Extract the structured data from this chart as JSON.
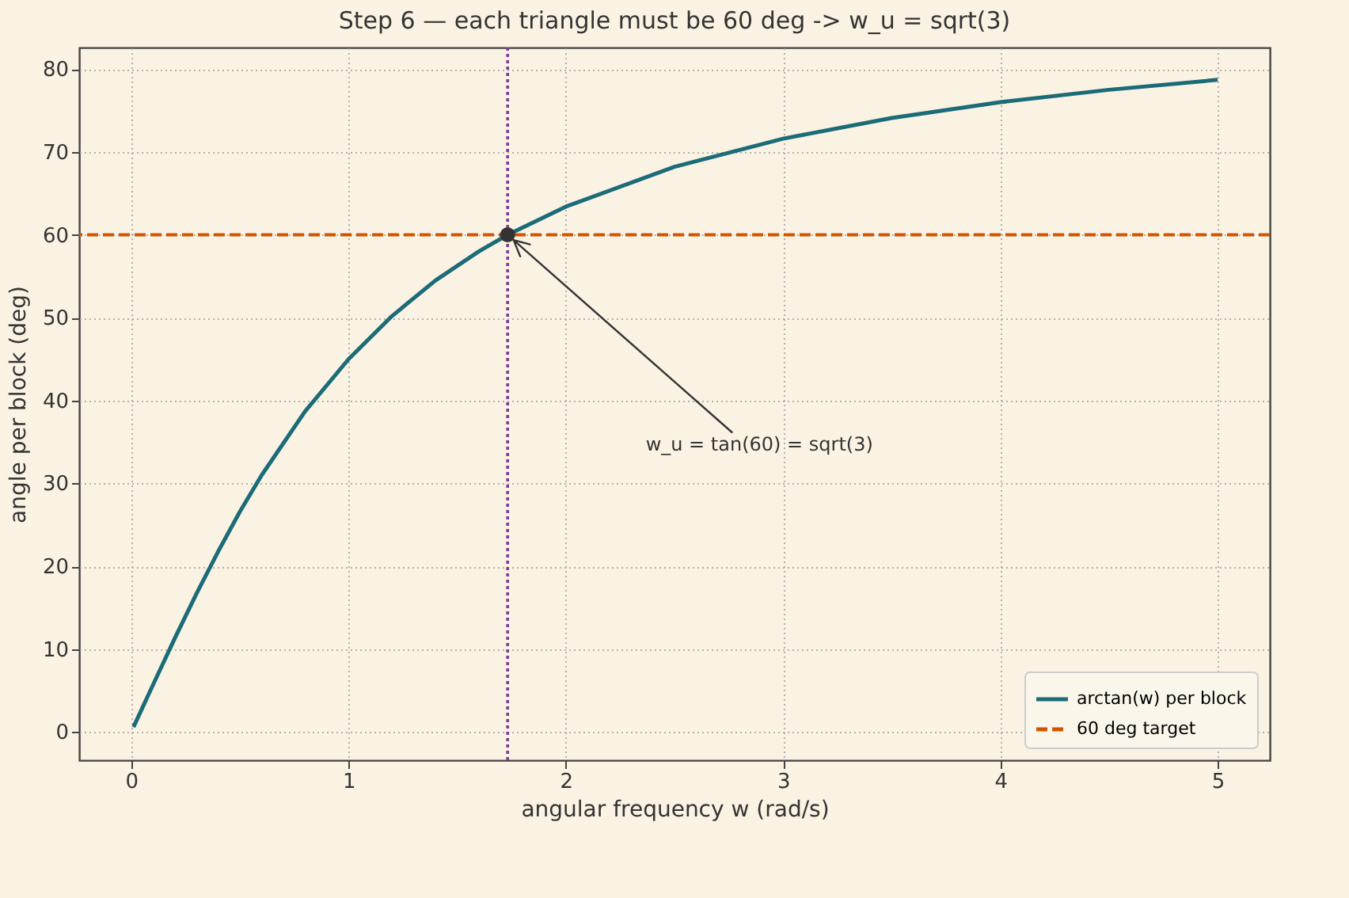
{
  "chart_data": {
    "type": "line",
    "title": "Step 6 — each triangle must be 60 deg -> w_u = sqrt(3)",
    "xlabel": "angular frequency  w  (rad/s)",
    "ylabel": "angle per block (deg)",
    "series": [
      {
        "name": "arctan(w) per block",
        "color": "#1b6b78",
        "x": [
          0.01,
          0.1,
          0.2,
          0.3,
          0.4,
          0.5,
          0.6,
          0.8,
          1.0,
          1.2,
          1.4,
          1.6,
          1.732,
          2.0,
          2.5,
          3.0,
          3.5,
          4.0,
          4.5,
          5.0
        ],
        "values": [
          0.6,
          5.7,
          11.3,
          16.7,
          21.8,
          26.6,
          31.0,
          38.7,
          45.0,
          50.2,
          54.5,
          58.0,
          60.0,
          63.4,
          68.2,
          71.6,
          74.1,
          76.0,
          77.5,
          78.7
        ]
      },
      {
        "type": "scatter",
        "color": "#333333",
        "marker": "circle",
        "x": [
          1.732
        ],
        "values": [
          60
        ]
      }
    ],
    "ref_lines": [
      {
        "axis": "y",
        "value": 60,
        "label": "60 deg target",
        "color": "#d35400",
        "line_style": "dashed"
      },
      {
        "axis": "x",
        "value": 1.732,
        "color": "#7d3c98",
        "line_style": "dotted"
      }
    ],
    "annotations": [
      "w_u = tan(60) = sqrt(3)"
    ],
    "xlim": [
      -0.24,
      5.24
    ],
    "ylim": [
      -3.4,
      82.6
    ],
    "xticks": [
      0,
      1,
      2,
      3,
      4,
      5
    ],
    "yticks": [
      0,
      10,
      20,
      30,
      40,
      50,
      60,
      70,
      80
    ],
    "grid": true,
    "legend": "bottom right"
  }
}
